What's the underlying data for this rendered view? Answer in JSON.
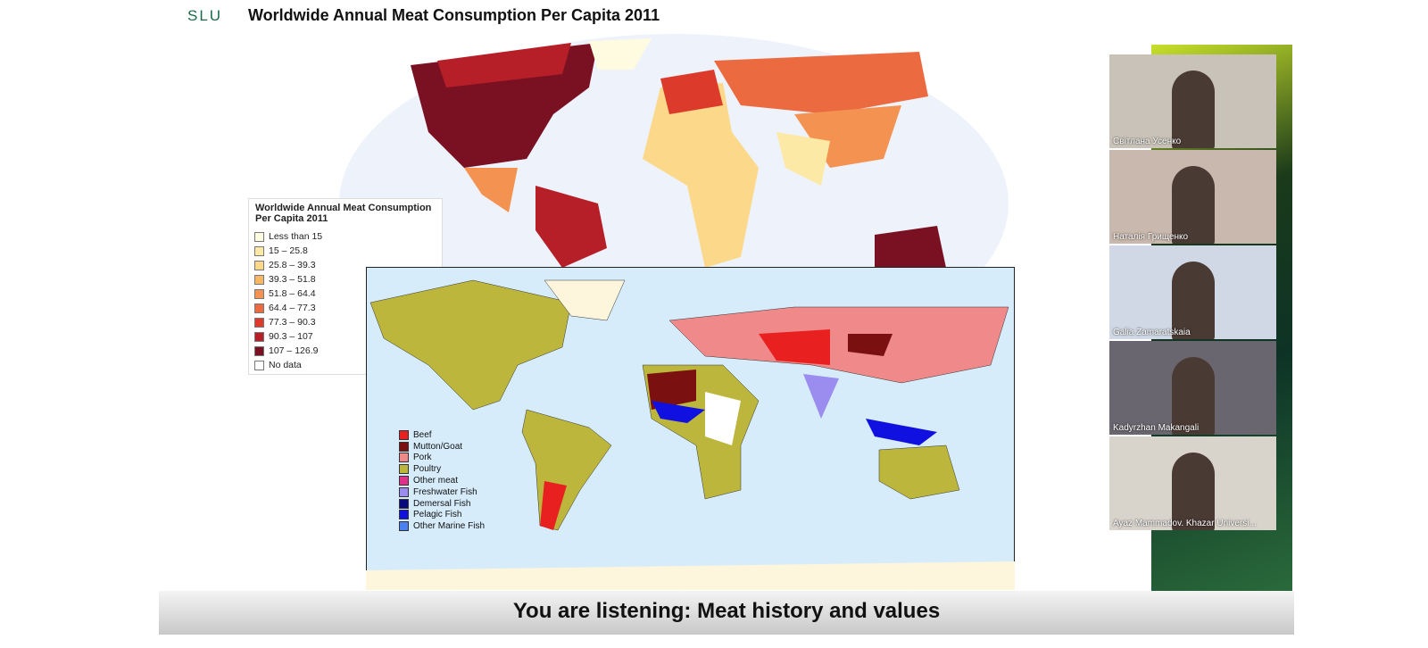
{
  "slide": {
    "logo": "SLU",
    "title": "Worldwide Annual Meat Consumption Per Capita 2011",
    "legend_top": {
      "title": "Worldwide Annual Meat Consumption Per Capita 2011",
      "items": [
        {
          "label": "Less than 15",
          "color": "#fffbe0"
        },
        {
          "label": "15 – 25.8",
          "color": "#fde9a6"
        },
        {
          "label": "25.8 – 39.3",
          "color": "#fbd88a"
        },
        {
          "label": "39.3 – 51.8",
          "color": "#f8b764"
        },
        {
          "label": "51.8 – 64.4",
          "color": "#f39251"
        },
        {
          "label": "64.4 – 77.3",
          "color": "#ec6a3f"
        },
        {
          "label": "77.3 – 90.3",
          "color": "#dc3b2b"
        },
        {
          "label": "90.3 – 107",
          "color": "#b61f27"
        },
        {
          "label": "107 – 126.9",
          "color": "#7a1123"
        },
        {
          "label": "No data",
          "color": "#ffffff"
        }
      ]
    },
    "legend_bottom": {
      "items": [
        {
          "label": "Beef",
          "color": "#e8201f"
        },
        {
          "label": "Mutton/Goat",
          "color": "#7b1010"
        },
        {
          "label": "Pork",
          "color": "#f08a8a"
        },
        {
          "label": "Poultry",
          "color": "#bdb63c"
        },
        {
          "label": "Other meat",
          "color": "#e0308a"
        },
        {
          "label": "Freshwater Fish",
          "color": "#9b8cf0"
        },
        {
          "label": "Demersal Fish",
          "color": "#0a0a80"
        },
        {
          "label": "Pelagic Fish",
          "color": "#1010e0"
        },
        {
          "label": "Other Marine Fish",
          "color": "#4a80f0"
        }
      ]
    }
  },
  "participants": [
    "Світлана Усенко",
    "Наталія Грищенко",
    "Galia Zamaratskaia",
    "Kadyrzhan Makangali",
    "Ayaz Mammadov. Khazar Universi..."
  ],
  "banner": "You are listening: Meat history and values"
}
